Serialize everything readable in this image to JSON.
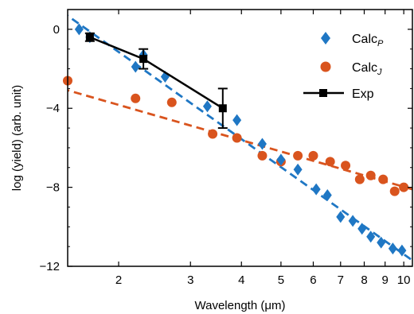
{
  "chart_data": {
    "type": "scatter",
    "xlabel": "Wavelength (μm)",
    "ylabel": "log (yield) (arb. unit)",
    "xscale": "log",
    "xlim": [
      1.5,
      10.5
    ],
    "ylim": [
      -12,
      1
    ],
    "xticks": [
      2,
      3,
      4,
      5,
      6,
      7,
      8,
      9,
      10
    ],
    "yticks": [
      0,
      -4,
      -8,
      -12
    ],
    "ytick_labels": [
      "0",
      "−4",
      "−8",
      "−12"
    ],
    "grid": false,
    "legend": {
      "placement": "top-right",
      "entries": [
        {
          "base": "Calc",
          "sub": "P"
        },
        {
          "base": "Calc",
          "sub": "J"
        },
        {
          "base": "Exp",
          "sub": ""
        }
      ]
    },
    "colors": {
      "calc_p": "#1f77c4",
      "calc_j": "#d9541e",
      "exp": "#000000"
    },
    "series": [
      {
        "name": "CalcP",
        "marker": "diamond",
        "points": [
          [
            1.6,
            0.0
          ],
          [
            1.7,
            -0.4
          ],
          [
            2.2,
            -1.9
          ],
          [
            2.3,
            -1.3
          ],
          [
            2.6,
            -2.4
          ],
          [
            3.3,
            -3.9
          ],
          [
            3.9,
            -4.6
          ],
          [
            4.5,
            -5.8
          ],
          [
            5.0,
            -6.6
          ],
          [
            5.5,
            -7.1
          ],
          [
            6.1,
            -8.1
          ],
          [
            6.5,
            -8.4
          ],
          [
            7.0,
            -9.5
          ],
          [
            7.5,
            -9.7
          ],
          [
            7.9,
            -10.1
          ],
          [
            8.3,
            -10.5
          ],
          [
            8.8,
            -10.8
          ],
          [
            9.4,
            -11.1
          ],
          [
            9.9,
            -11.2
          ]
        ],
        "fit": {
          "x": [
            1.45,
            10.5
          ],
          "y": [
            0.9,
            -11.7
          ]
        }
      },
      {
        "name": "CalcJ",
        "marker": "circle",
        "points": [
          [
            1.5,
            -2.6
          ],
          [
            2.2,
            -3.5
          ],
          [
            2.7,
            -3.7
          ],
          [
            3.4,
            -5.3
          ],
          [
            3.9,
            -5.5
          ],
          [
            4.5,
            -6.4
          ],
          [
            5.0,
            -6.7
          ],
          [
            5.5,
            -6.4
          ],
          [
            6.0,
            -6.4
          ],
          [
            6.6,
            -6.7
          ],
          [
            7.2,
            -6.9
          ],
          [
            7.8,
            -7.6
          ],
          [
            8.3,
            -7.4
          ],
          [
            8.9,
            -7.6
          ],
          [
            9.5,
            -8.2
          ],
          [
            10.0,
            -8.0
          ]
        ],
        "fit": {
          "x": [
            1.45,
            10.5
          ],
          "y": [
            -3.0,
            -8.1
          ]
        }
      },
      {
        "name": "Exp",
        "marker": "square",
        "points": [
          [
            1.7,
            -0.4
          ],
          [
            2.3,
            -1.5
          ],
          [
            3.6,
            -4.0
          ]
        ],
        "errors": [
          0.2,
          0.5,
          1.0
        ]
      }
    ]
  }
}
